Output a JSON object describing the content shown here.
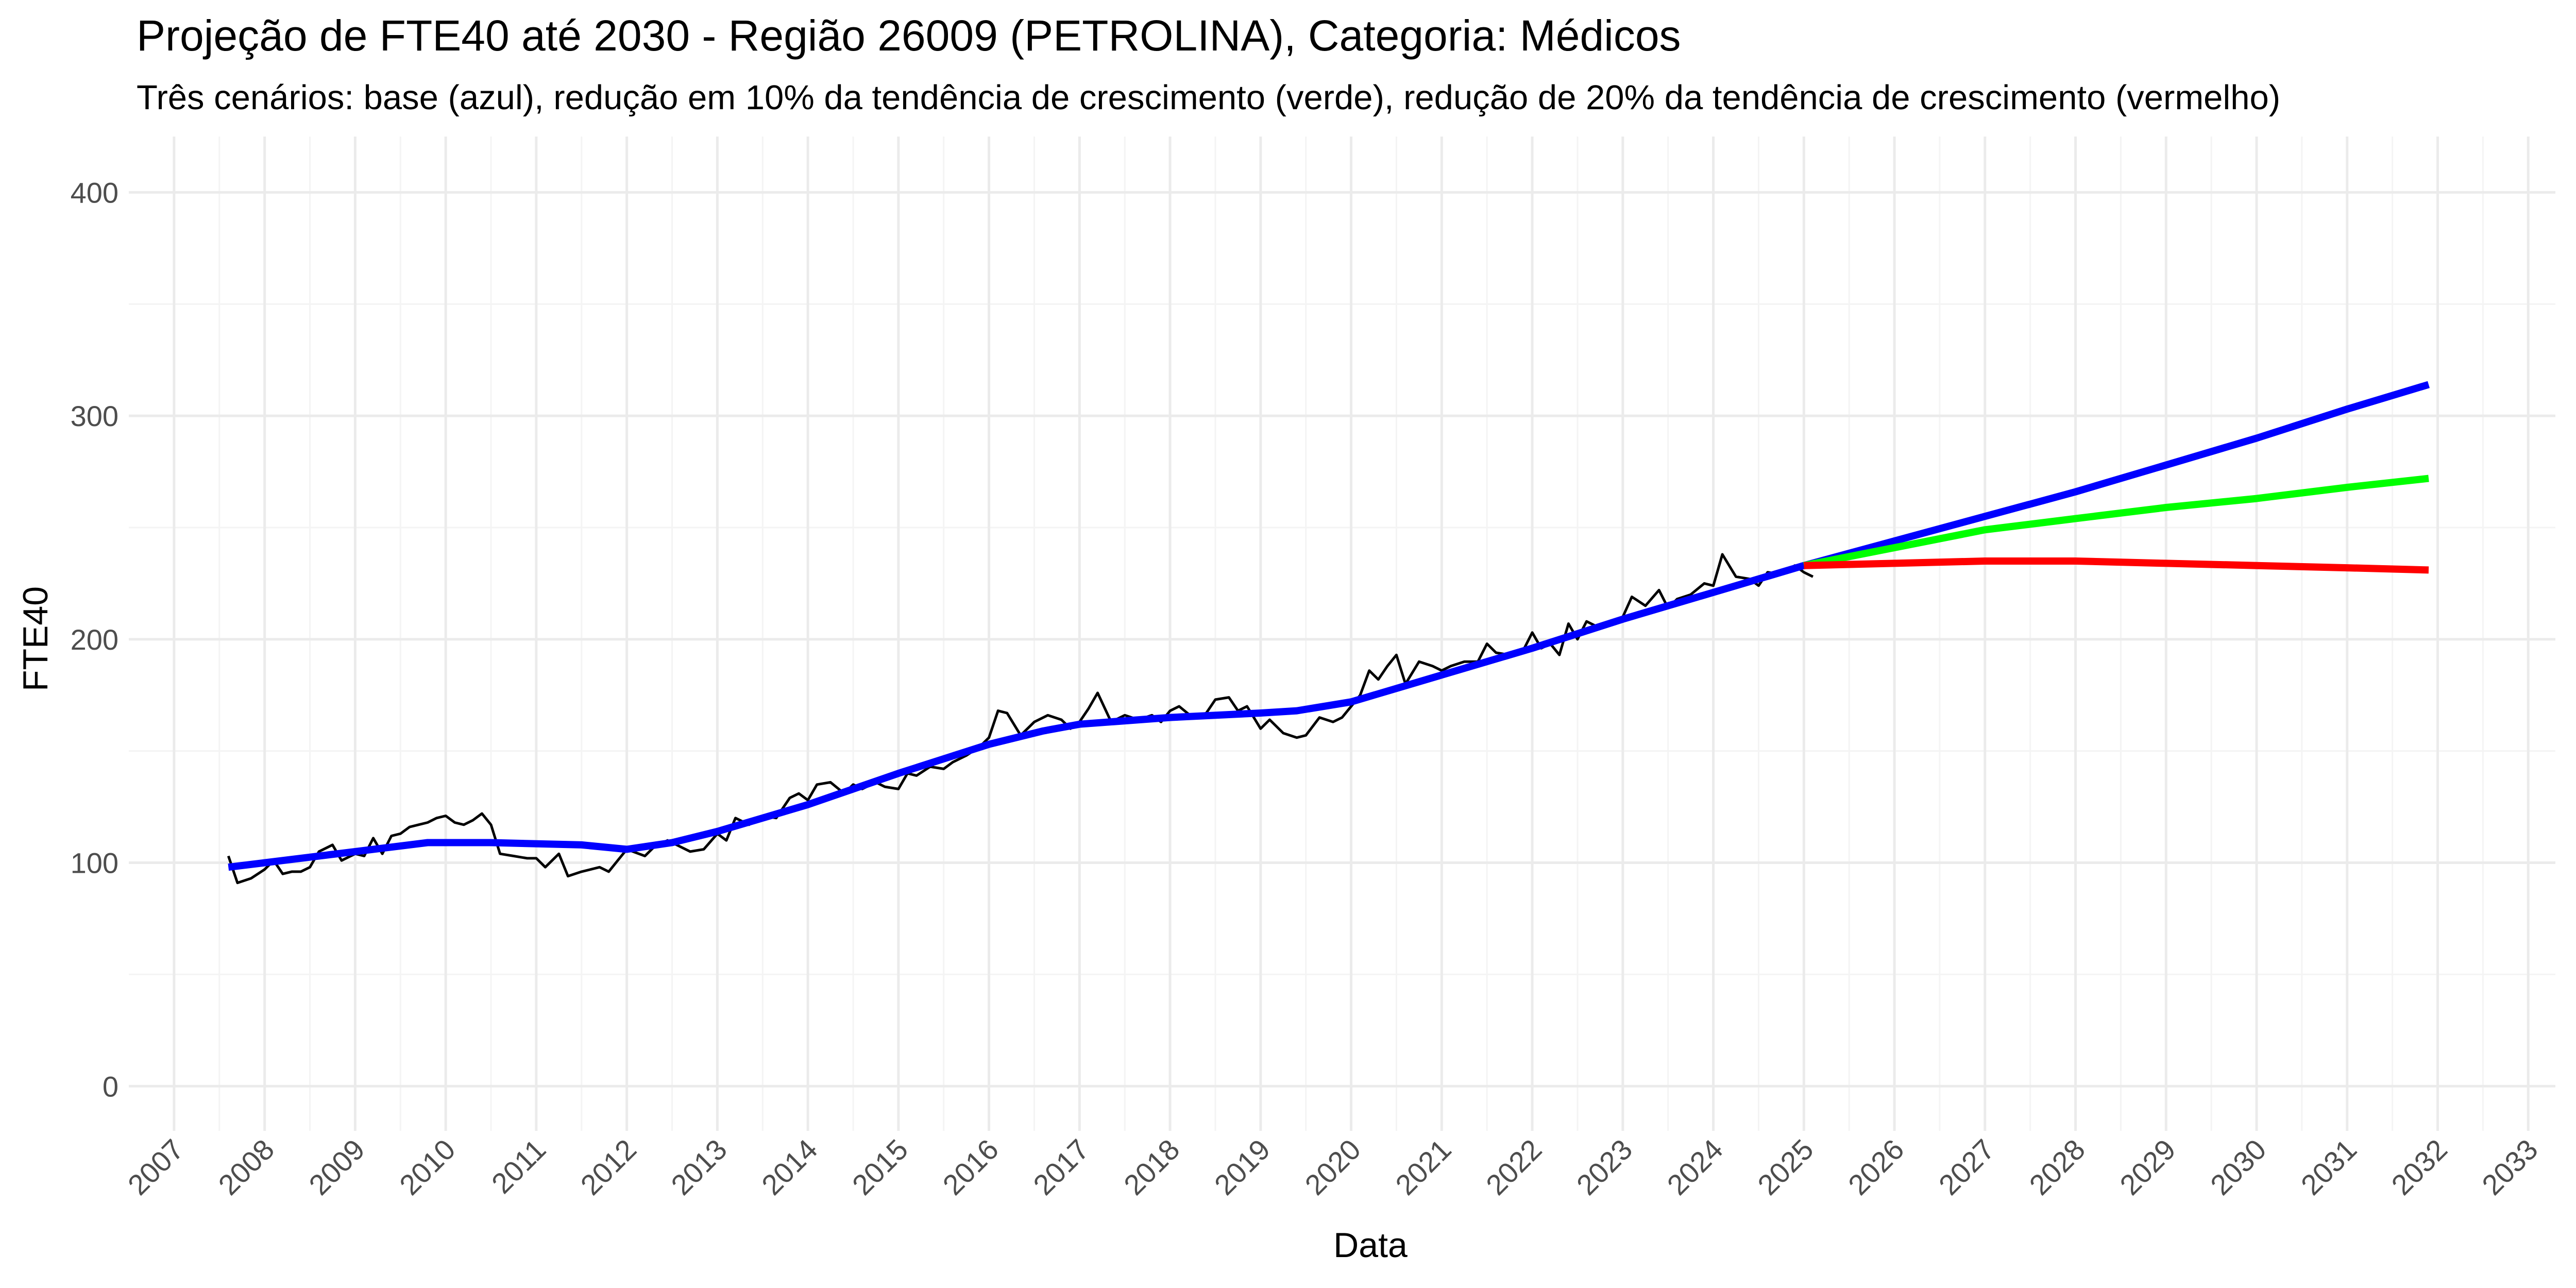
{
  "chart_data": {
    "type": "line",
    "title": "Projeção de FTE40 até 2030 - Região 26009 (PETROLINA), Categoria: Médicos",
    "subtitle": "Três cenários: base (azul), redução em 10% da tendência de crescimento (verde), redução de 20% da tendência de crescimento (vermelho)",
    "xlabel": "Data",
    "ylabel": "FTE40",
    "xlim": [
      2006.5,
      2033.3
    ],
    "ylim": [
      -20,
      425
    ],
    "grid": true,
    "legend": "none",
    "x_ticks": [
      2007,
      2008,
      2009,
      2010,
      2011,
      2012,
      2013,
      2014,
      2015,
      2016,
      2017,
      2018,
      2019,
      2020,
      2021,
      2022,
      2023,
      2024,
      2025,
      2026,
      2027,
      2028,
      2029,
      2030,
      2031,
      2032,
      2033
    ],
    "y_ticks": [
      0,
      100,
      200,
      300,
      400
    ],
    "series": [
      {
        "color": "#000000",
        "style": "thin",
        "x": [
          2007.6,
          2007.7,
          2007.85,
          2008.0,
          2008.1,
          2008.2,
          2008.3,
          2008.4,
          2008.5,
          2008.6,
          2008.75,
          2008.85,
          2009.0,
          2009.1,
          2009.2,
          2009.3,
          2009.4,
          2009.5,
          2009.6,
          2009.7,
          2009.8,
          2009.9,
          2010.0,
          2010.1,
          2010.2,
          2010.3,
          2010.4,
          2010.5,
          2010.6,
          2010.75,
          2010.9,
          2011.0,
          2011.1,
          2011.25,
          2011.35,
          2011.5,
          2011.6,
          2011.7,
          2011.8,
          2011.9,
          2012.0,
          2012.2,
          2012.3,
          2012.45,
          2012.55,
          2012.7,
          2012.85,
          2013.0,
          2013.1,
          2013.2,
          2013.35,
          2013.5,
          2013.65,
          2013.8,
          2013.9,
          2014.0,
          2014.1,
          2014.25,
          2014.4,
          2014.5,
          2014.6,
          2014.75,
          2014.85,
          2015.0,
          2015.1,
          2015.2,
          2015.35,
          2015.5,
          2015.6,
          2015.75,
          2015.9,
          2016.0,
          2016.1,
          2016.2,
          2016.35,
          2016.5,
          2016.65,
          2016.8,
          2016.9,
          2017.0,
          2017.1,
          2017.2,
          2017.35,
          2017.5,
          2017.65,
          2017.8,
          2017.9,
          2018.0,
          2018.1,
          2018.25,
          2018.4,
          2018.5,
          2018.65,
          2018.75,
          2018.85,
          2019.0,
          2019.1,
          2019.25,
          2019.4,
          2019.5,
          2019.65,
          2019.8,
          2019.9,
          2020.0,
          2020.1,
          2020.2,
          2020.3,
          2020.4,
          2020.5,
          2020.6,
          2020.75,
          2020.9,
          2021.0,
          2021.1,
          2021.25,
          2021.4,
          2021.5,
          2021.6,
          2021.75,
          2021.9,
          2022.0,
          2022.1,
          2022.2,
          2022.3,
          2022.4,
          2022.5,
          2022.6,
          2022.75,
          2022.9,
          2023.0,
          2023.1,
          2023.25,
          2023.4,
          2023.5,
          2023.6,
          2023.75,
          2023.9,
          2024.0,
          2024.1,
          2024.25,
          2024.4,
          2024.5,
          2024.6,
          2024.75,
          2024.9,
          2025.0,
          2025.1
        ],
        "y": [
          103,
          91,
          93,
          97,
          101,
          95,
          96,
          96,
          98,
          105,
          108,
          101,
          104,
          103,
          111,
          104,
          112,
          113,
          116,
          117,
          118,
          120,
          121,
          118,
          117,
          119,
          122,
          117,
          104,
          103,
          102,
          102,
          98,
          104,
          94,
          96,
          97,
          98,
          96,
          101,
          106,
          103,
          107,
          110,
          108,
          105,
          106,
          113,
          110,
          120,
          117,
          121,
          120,
          129,
          131,
          128,
          135,
          136,
          131,
          135,
          133,
          136,
          134,
          133,
          140,
          139,
          143,
          142,
          145,
          148,
          152,
          156,
          168,
          167,
          157,
          163,
          166,
          164,
          160,
          163,
          169,
          176,
          163,
          166,
          164,
          166,
          163,
          168,
          170,
          165,
          167,
          173,
          174,
          168,
          170,
          160,
          164,
          158,
          156,
          157,
          165,
          163,
          165,
          170,
          175,
          186,
          182,
          188,
          193,
          180,
          190,
          188,
          186,
          188,
          190,
          190,
          198,
          194,
          193,
          195,
          203,
          196,
          198,
          193,
          207,
          200,
          208,
          205,
          208,
          210,
          219,
          215,
          222,
          214,
          218,
          220,
          225,
          224,
          238,
          228,
          227,
          224,
          230,
          229,
          233,
          230,
          228
        ]
      },
      {
        "color": "#0000ff",
        "x": [
          2007.6,
          2008.0,
          2009.0,
          2009.8,
          2010.5,
          2011.5,
          2012.0,
          2012.5,
          2013.0,
          2014.0,
          2015.0,
          2016.0,
          2016.6,
          2017.0,
          2018.0,
          2019.0,
          2019.4,
          2020.0,
          2021.0,
          2022.0,
          2023.0,
          2024.0,
          2025.0,
          2026.0,
          2027.0,
          2028.0,
          2029.0,
          2030.0,
          2031.0,
          2031.9
        ],
        "y": [
          98,
          100,
          105,
          109,
          109,
          108,
          106,
          109,
          114,
          126,
          140,
          153,
          159,
          162,
          165,
          167,
          168,
          172,
          184,
          196,
          209,
          221,
          233,
          244,
          255,
          266,
          278,
          290,
          303,
          314
        ]
      },
      {
        "color": "#00ff00",
        "x": [
          2025.0,
          2026.0,
          2027.0,
          2028.0,
          2029.0,
          2030.0,
          2031.0,
          2031.9
        ],
        "y": [
          233,
          241,
          249,
          254,
          259,
          263,
          268,
          272
        ]
      },
      {
        "color": "#ff0000",
        "x": [
          2025.0,
          2026.0,
          2027.0,
          2028.0,
          2029.0,
          2030.0,
          2031.0,
          2031.9
        ],
        "y": [
          233,
          234,
          235,
          235,
          234,
          233,
          232,
          231
        ]
      }
    ]
  }
}
